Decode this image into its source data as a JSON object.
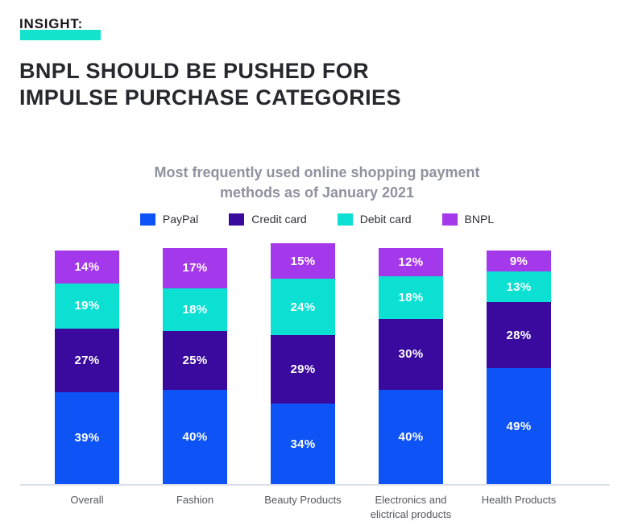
{
  "header": {
    "insight_label": "INSIGHT:",
    "title": "BNPL SHOULD BE PUSHED FOR IMPULSE PURCHASE CATEGORIES"
  },
  "chart_data": {
    "type": "bar",
    "stacked": true,
    "title": "Most frequently used online shopping payment methods as of January 2021",
    "categories": [
      "Overall",
      "Fashion",
      "Beauty Products",
      "Electronics and elictrical products",
      "Health Products"
    ],
    "series": [
      {
        "name": "PayPal",
        "color": "#0d53f6",
        "values": [
          39,
          40,
          34,
          40,
          49
        ]
      },
      {
        "name": "Credit card",
        "color": "#3a0a9e",
        "values": [
          27,
          25,
          29,
          30,
          28
        ]
      },
      {
        "name": "Debit card",
        "color": "#0be0d2",
        "values": [
          19,
          18,
          24,
          18,
          13
        ]
      },
      {
        "name": "BNPL",
        "color": "#a438eb",
        "values": [
          14,
          17,
          15,
          12,
          9
        ]
      }
    ],
    "value_suffix": "%",
    "legend_position": "top",
    "legend_order": [
      "PayPal",
      "Credit card",
      "Debit card",
      "BNPL"
    ],
    "grid": false,
    "value_labels": "inside-white-bold",
    "ylim": [
      0,
      102
    ]
  },
  "colors": {
    "insight_highlight": "#14e3cd",
    "heading_text": "#27272e",
    "chart_title_text": "#8f929f",
    "axis_label_text": "#55565e",
    "axis_line": "#dce0ea",
    "value_label_text": "#ffffff"
  }
}
